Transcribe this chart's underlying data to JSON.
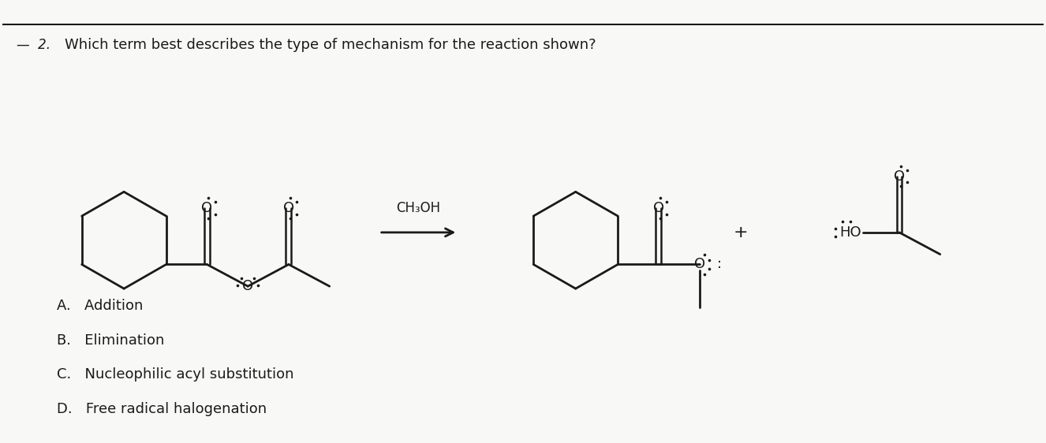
{
  "title_number": "2.",
  "question": "Which term best describes the type of mechanism for the reaction shown?",
  "reagent": "CH₃OH",
  "choices": [
    "A.   Addition",
    "B.   Elimination",
    "C.   Nucleophilic acyl substitution",
    "D.   Free radical halogenation"
  ],
  "bg_color": "#f8f8f6",
  "text_color": "#1a1a1a",
  "line_color": "#1a1a1a",
  "fig_width": 13.26,
  "fig_height": 5.62
}
